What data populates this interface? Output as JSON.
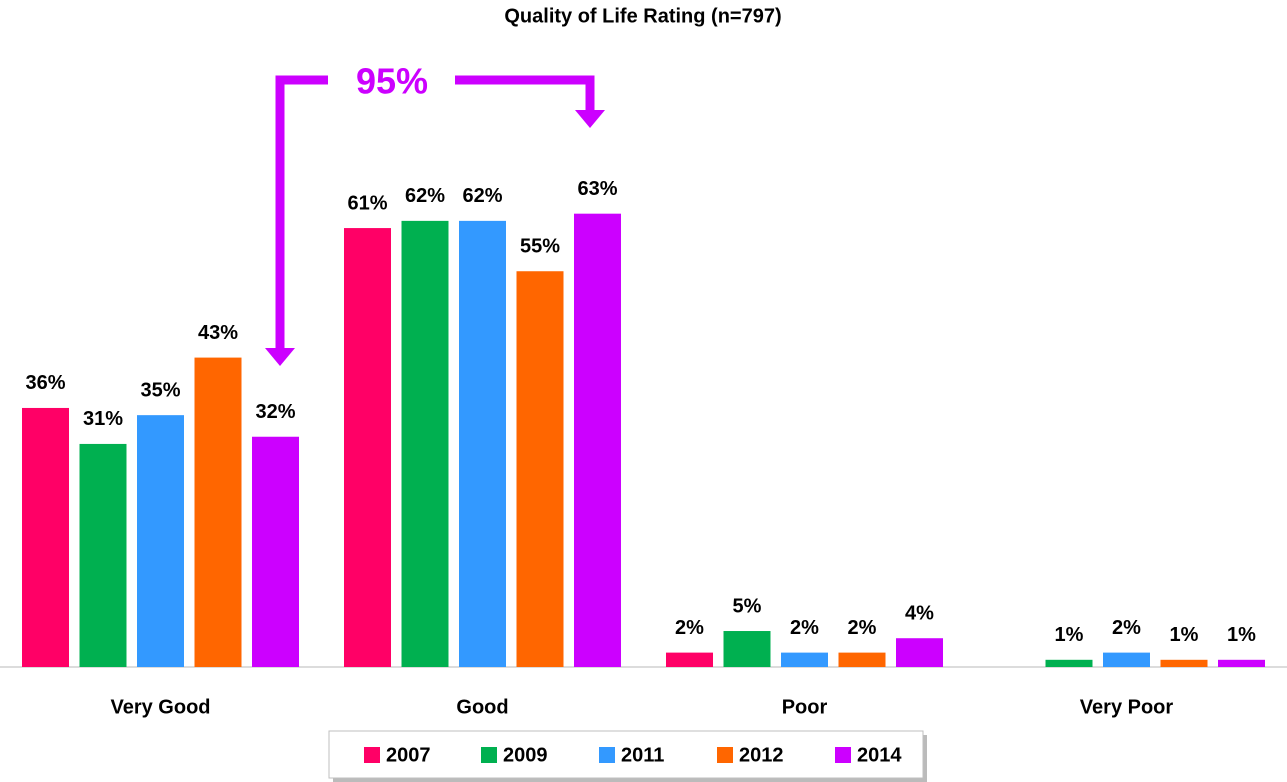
{
  "chart_data": {
    "type": "bar",
    "title": "Quality of Life Rating (n=797)",
    "categories": [
      "Very Good",
      "Good",
      "Poor",
      "Very Poor"
    ],
    "series": [
      {
        "name": "2007",
        "color": "#ff0066",
        "values": [
          36,
          61,
          2,
          null
        ],
        "value_labels": [
          "36%",
          "61%",
          "2%",
          null
        ]
      },
      {
        "name": "2009",
        "color": "#00b050",
        "values": [
          31,
          62,
          5,
          1
        ],
        "value_labels": [
          "31%",
          "62%",
          "5%",
          "1%"
        ]
      },
      {
        "name": "2011",
        "color": "#3399ff",
        "values": [
          35,
          62,
          2,
          2
        ],
        "value_labels": [
          "35%",
          "62%",
          "2%",
          "2%"
        ]
      },
      {
        "name": "2012",
        "color": "#ff6600",
        "values": [
          43,
          55,
          2,
          1
        ],
        "value_labels": [
          "43%",
          "55%",
          "2%",
          "1%"
        ]
      },
      {
        "name": "2014",
        "color": "#cc00ff",
        "values": [
          32,
          63,
          4,
          1
        ],
        "value_labels": [
          "32%",
          "63%",
          "4%",
          "1%"
        ]
      }
    ],
    "ylim": [
      0,
      92
    ],
    "annotation": "95%",
    "legend": "bottom"
  }
}
